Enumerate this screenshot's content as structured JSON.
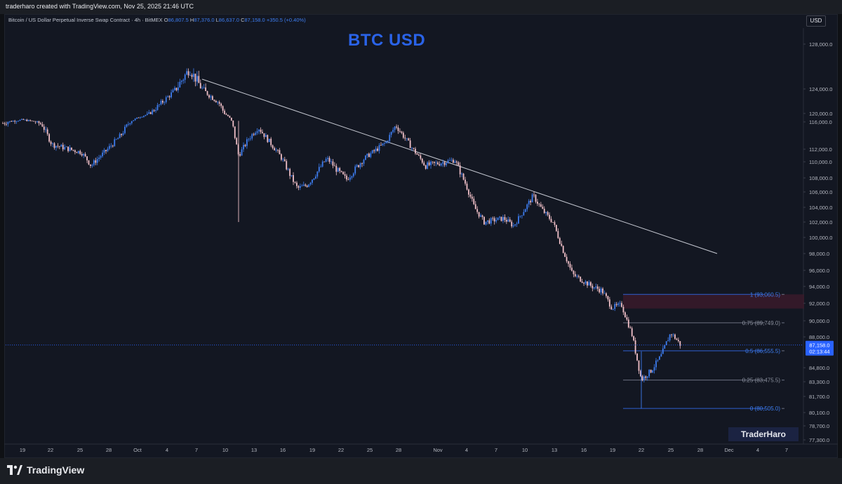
{
  "header": {
    "credit": "traderharo created with TradingView.com, Nov 25, 2025 21:46 UTC"
  },
  "legend": {
    "symbol": "Bitcoin / US Dollar Perpetual Inverse Swap Contract · 4h · BitMEX",
    "o_label": "O",
    "o_value": "86,807.5",
    "h_label": "H",
    "h_value": "87,376.0",
    "l_label": "L",
    "l_value": "86,637.0",
    "c_label": "C",
    "c_value": "87,158.0",
    "change": "+350.5 (+0.40%)"
  },
  "currency": "USD",
  "title": "BTC USD",
  "watermark": "TraderHaro",
  "brand": "TradingView",
  "chart_data": {
    "type": "candlestick",
    "y_axis_labels": [
      "128,000.0",
      "124,000.0",
      "120,000.0",
      "116,000.0",
      "112,000.0",
      "110,000.0",
      "108,000.0",
      "106,000.0",
      "104,000.0",
      "102,000.0",
      "100,000.0",
      "98,000.0",
      "96,000.0",
      "94,000.0",
      "92,000.0",
      "90,000.0",
      "88,000.0",
      "84,800.0",
      "83,300.0",
      "81,700.0",
      "80,100.0",
      "78,700.0",
      "77,300.0"
    ],
    "x_axis_labels": [
      "19",
      "22",
      "25",
      "28",
      "Oct",
      "4",
      "7",
      "10",
      "13",
      "16",
      "19",
      "22",
      "25",
      "28",
      "Nov",
      "4",
      "7",
      "10",
      "13",
      "16",
      "19",
      "22",
      "25",
      "28",
      "Dec",
      "4",
      "7"
    ],
    "last_price": "87,158.0",
    "countdown": "02:13:44",
    "fib_levels": [
      {
        "label": "1 (93,060.5)",
        "value": 93060.5
      },
      {
        "label": "0.75 (89,749.0)",
        "value": 89749.0
      },
      {
        "label": "0.5 (86,555.5)",
        "value": 86555.5
      },
      {
        "label": "0.25 (83,475.5)",
        "value": 83475.5
      },
      {
        "label": "0 (80,505.0)",
        "value": 80505.0
      }
    ],
    "zone": {
      "from": 91400,
      "to": 93060.5
    },
    "trendline": {
      "from": {
        "date": "Oct 7",
        "price": 125000
      },
      "to": {
        "date": "Nov 30",
        "price": 98000
      }
    },
    "close_path": [
      {
        "date": "Sep 17",
        "close": 115800
      },
      {
        "date": "Sep 19",
        "close": 117000
      },
      {
        "date": "Sep 21",
        "close": 115600
      },
      {
        "date": "Sep 22",
        "close": 112700
      },
      {
        "date": "Sep 25",
        "close": 111500
      },
      {
        "date": "Sep 26",
        "close": 109500
      },
      {
        "date": "Sep 29",
        "close": 114000
      },
      {
        "date": "Oct 1",
        "close": 118500
      },
      {
        "date": "Oct 3",
        "close": 121500
      },
      {
        "date": "Oct 5",
        "close": 124500
      },
      {
        "date": "Oct 6",
        "close": 125800
      },
      {
        "date": "Oct 8",
        "close": 123000
      },
      {
        "date": "Oct 9",
        "close": 121800
      },
      {
        "date": "Oct 10",
        "close": 118500
      },
      {
        "date": "Oct 11",
        "close": 111000
      },
      {
        "date": "Oct 12",
        "close": 113500
      },
      {
        "date": "Oct 13",
        "close": 115200
      },
      {
        "date": "Oct 15",
        "close": 111500
      },
      {
        "date": "Oct 17",
        "close": 106500
      },
      {
        "date": "Oct 18",
        "close": 107000
      },
      {
        "date": "Oct 20",
        "close": 110500
      },
      {
        "date": "Oct 21",
        "close": 109000
      },
      {
        "date": "Oct 22",
        "close": 107800
      },
      {
        "date": "Oct 24",
        "close": 110800
      },
      {
        "date": "Oct 26",
        "close": 113000
      },
      {
        "date": "Oct 27",
        "close": 115500
      },
      {
        "date": "Oct 28",
        "close": 113500
      },
      {
        "date": "Oct 30",
        "close": 109500
      },
      {
        "date": "Nov 1",
        "close": 110000
      },
      {
        "date": "Nov 2",
        "close": 110300
      },
      {
        "date": "Nov 3",
        "close": 107500
      },
      {
        "date": "Nov 4",
        "close": 104000
      },
      {
        "date": "Nov 5",
        "close": 102000
      },
      {
        "date": "Nov 7",
        "close": 102500
      },
      {
        "date": "Nov 8",
        "close": 101500
      },
      {
        "date": "Nov 10",
        "close": 105500
      },
      {
        "date": "Nov 11",
        "close": 103500
      },
      {
        "date": "Nov 12",
        "close": 102000
      },
      {
        "date": "Nov 13",
        "close": 98500
      },
      {
        "date": "Nov 14",
        "close": 95500
      },
      {
        "date": "Nov 16",
        "close": 94000
      },
      {
        "date": "Nov 17",
        "close": 93500
      },
      {
        "date": "Nov 18",
        "close": 91500
      },
      {
        "date": "Nov 19",
        "close": 91800
      },
      {
        "date": "Nov 20",
        "close": 88500
      },
      {
        "date": "Nov 21",
        "close": 83500
      },
      {
        "date": "Nov 22",
        "close": 84500
      },
      {
        "date": "Nov 23",
        "close": 86000
      },
      {
        "date": "Nov 24",
        "close": 88500
      },
      {
        "date": "Nov 25",
        "close": 87158
      }
    ],
    "colors": {
      "up": "#3d7df0",
      "down": "#f0c0c8",
      "trendline": "#c6c9d2",
      "zone": "#3a1a2a",
      "fib": "#2f5fd0",
      "label_bg": "#2962ff"
    }
  }
}
